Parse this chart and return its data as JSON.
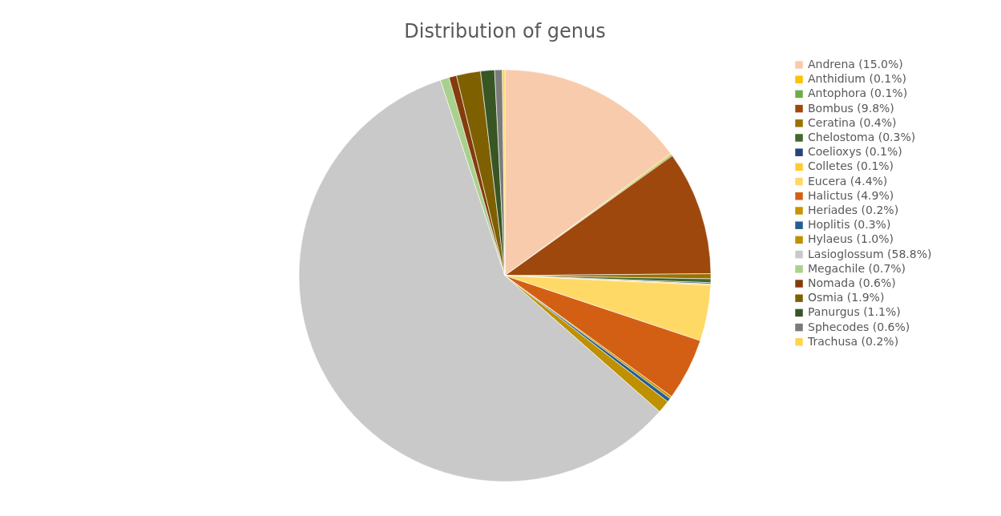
{
  "chart_data": {
    "type": "pie",
    "title": "Distribution of genus",
    "categories": [
      "Andrena (15.0%)",
      "Anthidium (0.1%)",
      "Antophora (0.1%)",
      "Bombus (9.8%)",
      "Ceratina (0.4%)",
      "Chelostoma (0.3%)",
      "Coelioxys (0.1%)",
      "Colletes (0.1%)",
      "Eucera (4.4%)",
      "Halictus (4.9%)",
      "Heriades (0.2%)",
      "Hoplitis (0.3%)",
      "Hylaeus (1.0%)",
      "Lasioglossum (58.8%)",
      "Megachile (0.7%)",
      "Nomada (0.6%)",
      "Osmia (1.9%)",
      "Panurgus (1.1%)",
      "Sphecodes (0.6%)",
      "Trachusa (0.2%)"
    ],
    "values": [
      15.0,
      0.1,
      0.1,
      9.8,
      0.4,
      0.3,
      0.1,
      0.1,
      4.4,
      4.9,
      0.2,
      0.3,
      1.0,
      58.8,
      0.7,
      0.6,
      1.9,
      1.1,
      0.6,
      0.2
    ],
    "colors": [
      "#f8cbad",
      "#ffc000",
      "#70ad47",
      "#9e480e",
      "#997300",
      "#43682b",
      "#264478",
      "#ffcd33",
      "#ffd966",
      "#d35f15",
      "#c89500",
      "#255e91",
      "#bf9000",
      "#c9c9c9",
      "#a9d18e",
      "#843c0c",
      "#7f6000",
      "#375623",
      "#7b7b7b",
      "#ffd54f"
    ],
    "legend": "right"
  }
}
